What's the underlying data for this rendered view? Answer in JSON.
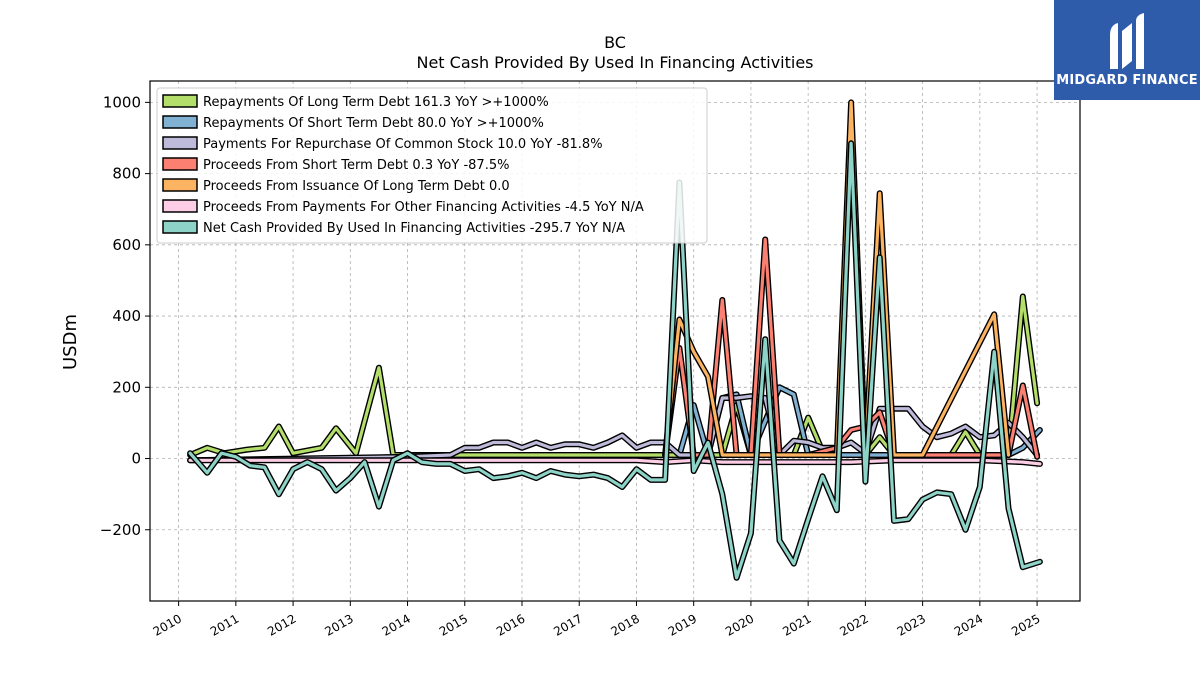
{
  "brand": {
    "name": "MIDGARD FINANCE"
  },
  "chart_data": {
    "type": "line",
    "title": "BC",
    "subtitle": "Net Cash Provided By Used In Financing Activities",
    "xlabel": "",
    "ylabel": "USDm",
    "xlim": [
      2009.5,
      2025.75
    ],
    "ylim": [
      -400,
      1060
    ],
    "yticks": [
      -200,
      0,
      200,
      400,
      600,
      800,
      1000
    ],
    "ytick_labels": [
      "−200",
      "0",
      "200",
      "400",
      "600",
      "800",
      "1000"
    ],
    "xticks": [
      2010,
      2011,
      2012,
      2013,
      2014,
      2015,
      2016,
      2017,
      2018,
      2019,
      2020,
      2021,
      2022,
      2023,
      2024,
      2025
    ],
    "xtick_labels": [
      "2010",
      "2011",
      "2012",
      "2013",
      "2014",
      "2015",
      "2016",
      "2017",
      "2018",
      "2019",
      "2020",
      "2021",
      "2022",
      "2023",
      "2024",
      "2025"
    ],
    "grid": true,
    "legend_position": "upper-left",
    "series": [
      {
        "legend": "Repayments Of Long Term Debt  161.3 YoY >+1000%",
        "color": "#b3de69",
        "points": [
          [
            2010.2,
            10
          ],
          [
            2010.5,
            30
          ],
          [
            2010.8,
            15
          ],
          [
            2011.2,
            25
          ],
          [
            2011.5,
            30
          ],
          [
            2011.75,
            90
          ],
          [
            2012.0,
            15
          ],
          [
            2012.5,
            30
          ],
          [
            2012.75,
            85
          ],
          [
            2013.1,
            15
          ],
          [
            2013.5,
            255
          ],
          [
            2013.75,
            10
          ],
          [
            2014.0,
            10
          ],
          [
            2018.0,
            10
          ],
          [
            2018.75,
            10
          ],
          [
            2019.0,
            10
          ],
          [
            2019.5,
            10
          ],
          [
            2019.75,
            150
          ],
          [
            2020.0,
            10
          ],
          [
            2020.5,
            10
          ],
          [
            2020.75,
            10
          ],
          [
            2021.0,
            115
          ],
          [
            2021.25,
            20
          ],
          [
            2021.5,
            10
          ],
          [
            2022.0,
            10
          ],
          [
            2022.25,
            60
          ],
          [
            2022.5,
            10
          ],
          [
            2023.5,
            10
          ],
          [
            2023.75,
            75
          ],
          [
            2024.0,
            10
          ],
          [
            2024.5,
            10
          ],
          [
            2024.75,
            455
          ],
          [
            2025.0,
            155
          ]
        ]
      },
      {
        "legend": "Repayments Of Short Term Debt  80.0 YoY >+1000%",
        "color": "#80b1d3",
        "points": [
          [
            2018.75,
            10
          ],
          [
            2019.0,
            150
          ],
          [
            2019.25,
            10
          ],
          [
            2019.5,
            170
          ],
          [
            2019.75,
            180
          ],
          [
            2020.0,
            10
          ],
          [
            2020.5,
            200
          ],
          [
            2020.75,
            180
          ],
          [
            2021.0,
            10
          ],
          [
            2024.5,
            10
          ],
          [
            2024.75,
            30
          ],
          [
            2025.05,
            80
          ]
        ]
      },
      {
        "legend": "Payments For Repurchase Of Common Stock  10.0 YoY -81.8%",
        "color": "#bebada",
        "points": [
          [
            2010.2,
            -5
          ],
          [
            2014.0,
            5
          ],
          [
            2014.75,
            10
          ],
          [
            2015.0,
            30
          ],
          [
            2015.25,
            30
          ],
          [
            2015.5,
            45
          ],
          [
            2015.75,
            45
          ],
          [
            2016.0,
            30
          ],
          [
            2016.25,
            45
          ],
          [
            2016.5,
            30
          ],
          [
            2016.75,
            40
          ],
          [
            2017.0,
            40
          ],
          [
            2017.25,
            30
          ],
          [
            2017.5,
            45
          ],
          [
            2017.75,
            65
          ],
          [
            2018.0,
            30
          ],
          [
            2018.25,
            45
          ],
          [
            2018.5,
            45
          ],
          [
            2018.75,
            10
          ],
          [
            2019.0,
            10
          ],
          [
            2019.25,
            10
          ],
          [
            2019.5,
            170
          ],
          [
            2019.75,
            170
          ],
          [
            2020.0,
            175
          ],
          [
            2020.25,
            170
          ],
          [
            2020.5,
            10
          ],
          [
            2020.75,
            50
          ],
          [
            2021.0,
            45
          ],
          [
            2021.25,
            30
          ],
          [
            2021.5,
            30
          ],
          [
            2021.75,
            45
          ],
          [
            2022.0,
            15
          ],
          [
            2022.25,
            140
          ],
          [
            2022.5,
            140
          ],
          [
            2022.75,
            140
          ],
          [
            2023.0,
            90
          ],
          [
            2023.25,
            60
          ],
          [
            2023.5,
            70
          ],
          [
            2023.75,
            90
          ],
          [
            2024.0,
            60
          ],
          [
            2024.25,
            65
          ],
          [
            2024.5,
            100
          ],
          [
            2024.75,
            60
          ],
          [
            2025.0,
            10
          ]
        ]
      },
      {
        "legend": "Proceeds From Short Term Debt  0.3 YoY -87.5%",
        "color": "#fb8072",
        "points": [
          [
            2018.5,
            10
          ],
          [
            2018.75,
            310
          ],
          [
            2019.0,
            10
          ],
          [
            2019.25,
            10
          ],
          [
            2019.5,
            445
          ],
          [
            2019.75,
            10
          ],
          [
            2020.0,
            10
          ],
          [
            2020.25,
            615
          ],
          [
            2020.5,
            10
          ],
          [
            2021.0,
            10
          ],
          [
            2021.5,
            30
          ],
          [
            2021.75,
            80
          ],
          [
            2022.0,
            90
          ],
          [
            2022.25,
            130
          ],
          [
            2022.5,
            10
          ],
          [
            2024.25,
            10
          ],
          [
            2024.5,
            10
          ],
          [
            2024.75,
            205
          ],
          [
            2025.0,
            5
          ]
        ]
      },
      {
        "legend": "Proceeds From Issuance Of Long Term Debt  0.0",
        "color": "#fdb462",
        "points": [
          [
            2018.5,
            10
          ],
          [
            2018.75,
            390
          ],
          [
            2019.0,
            300
          ],
          [
            2019.25,
            230
          ],
          [
            2019.5,
            10
          ],
          [
            2021.5,
            10
          ],
          [
            2021.75,
            1000
          ],
          [
            2022.0,
            10
          ],
          [
            2022.25,
            745
          ],
          [
            2022.5,
            10
          ],
          [
            2023.0,
            10
          ],
          [
            2024.25,
            405
          ],
          [
            2024.5,
            10
          ]
        ]
      },
      {
        "legend": "Proceeds From Payments For Other Financing Activities  -4.5 YoY N/A",
        "color": "#fccde5",
        "points": [
          [
            2010.2,
            -5
          ],
          [
            2014.0,
            -5
          ],
          [
            2015.0,
            -5
          ],
          [
            2016.0,
            -5
          ],
          [
            2017.0,
            -5
          ],
          [
            2018.0,
            -5
          ],
          [
            2018.5,
            -10
          ],
          [
            2019.0,
            -5
          ],
          [
            2019.5,
            -10
          ],
          [
            2020.0,
            -10
          ],
          [
            2020.5,
            -10
          ],
          [
            2021.0,
            -10
          ],
          [
            2021.75,
            -10
          ],
          [
            2022.5,
            -5
          ],
          [
            2023.0,
            -5
          ],
          [
            2024.0,
            -5
          ],
          [
            2024.75,
            -10
          ],
          [
            2025.05,
            -15
          ]
        ]
      },
      {
        "legend": "Net Cash Provided By Used In Financing Activities  -295.7 YoY N/A",
        "color": "#8dd3c7",
        "points": [
          [
            2010.2,
            15
          ],
          [
            2010.5,
            -40
          ],
          [
            2010.75,
            15
          ],
          [
            2011.0,
            5
          ],
          [
            2011.25,
            -20
          ],
          [
            2011.5,
            -25
          ],
          [
            2011.75,
            -100
          ],
          [
            2012.0,
            -30
          ],
          [
            2012.25,
            -10
          ],
          [
            2012.5,
            -30
          ],
          [
            2012.75,
            -90
          ],
          [
            2013.0,
            -55
          ],
          [
            2013.25,
            -10
          ],
          [
            2013.5,
            -135
          ],
          [
            2013.75,
            -5
          ],
          [
            2014.0,
            15
          ],
          [
            2014.25,
            -10
          ],
          [
            2014.5,
            -15
          ],
          [
            2014.75,
            -15
          ],
          [
            2015.0,
            -35
          ],
          [
            2015.25,
            -30
          ],
          [
            2015.5,
            -55
          ],
          [
            2015.75,
            -50
          ],
          [
            2016.0,
            -40
          ],
          [
            2016.25,
            -55
          ],
          [
            2016.5,
            -35
          ],
          [
            2016.75,
            -45
          ],
          [
            2017.0,
            -50
          ],
          [
            2017.25,
            -45
          ],
          [
            2017.5,
            -55
          ],
          [
            2017.75,
            -80
          ],
          [
            2018.0,
            -30
          ],
          [
            2018.25,
            -60
          ],
          [
            2018.5,
            -60
          ],
          [
            2018.75,
            775
          ],
          [
            2019.0,
            -35
          ],
          [
            2019.25,
            45
          ],
          [
            2019.5,
            -100
          ],
          [
            2019.75,
            -335
          ],
          [
            2020.0,
            -210
          ],
          [
            2020.25,
            335
          ],
          [
            2020.5,
            -230
          ],
          [
            2020.75,
            -295
          ],
          [
            2021.0,
            -170
          ],
          [
            2021.25,
            -50
          ],
          [
            2021.5,
            -145
          ],
          [
            2021.75,
            885
          ],
          [
            2022.0,
            -65
          ],
          [
            2022.25,
            565
          ],
          [
            2022.5,
            -175
          ],
          [
            2022.75,
            -170
          ],
          [
            2023.0,
            -115
          ],
          [
            2023.25,
            -95
          ],
          [
            2023.5,
            -100
          ],
          [
            2023.75,
            -200
          ],
          [
            2024.0,
            -80
          ],
          [
            2024.25,
            300
          ],
          [
            2024.5,
            -140
          ],
          [
            2024.75,
            -305
          ],
          [
            2025.05,
            -290
          ]
        ]
      }
    ]
  }
}
